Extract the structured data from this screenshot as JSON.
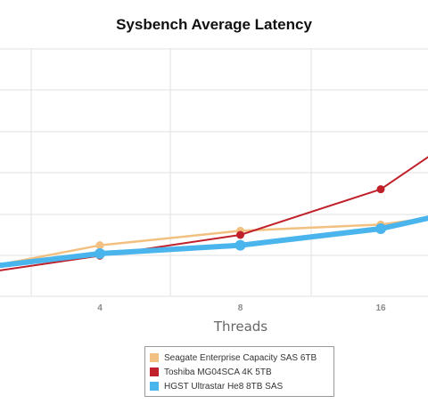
{
  "chart_data": {
    "type": "line",
    "title": "Sysbench Average Latency",
    "xlabel": "Threads",
    "ylabel": "",
    "x": [
      2,
      4,
      8,
      16,
      32
    ],
    "x_scale": "log2",
    "x_tick_labels": [
      "4",
      "8",
      "16"
    ],
    "y_tick_labels_visible": false,
    "grid": true,
    "legend_placement": "bottom-center",
    "series": [
      {
        "name": "Seagate Enterprise Capacity SAS 6TB",
        "color": "#f2c080",
        "values": [
          12,
          25,
          32,
          35,
          44
        ]
      },
      {
        "name": "Toshiba MG04SCA 4K 5TB",
        "color": "#c0202a",
        "values": [
          10,
          20,
          30,
          52,
          98
        ]
      },
      {
        "name": "HGST Ultrastar He8 8TB SAS",
        "color": "#4ab4ec",
        "values": [
          13,
          21,
          25,
          33,
          48
        ]
      }
    ]
  }
}
